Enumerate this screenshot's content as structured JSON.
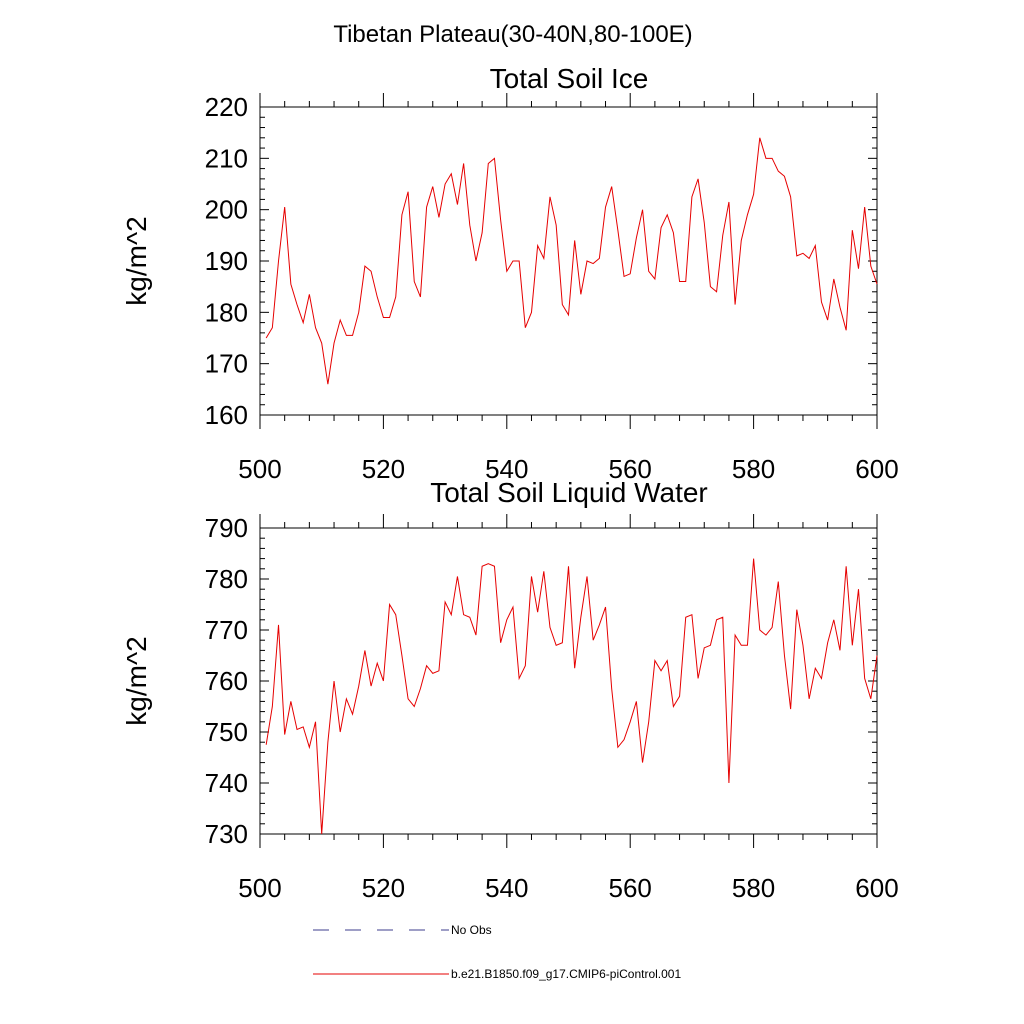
{
  "figure_title": "Tibetan Plateau(30-40N,80-100E)",
  "legend": {
    "entries": [
      {
        "label": "No Obs",
        "color": "#3c3c8c",
        "style": "dashed"
      },
      {
        "label": "b.e21.B1850.f09_g17.CMIP6-piControl.001",
        "color": "#e60000",
        "style": "solid"
      }
    ]
  },
  "chart_data": [
    {
      "type": "line",
      "title": "Total Soil Ice",
      "xlabel": "",
      "ylabel": "kg/m^2",
      "xlim": [
        500,
        600
      ],
      "ylim": [
        160,
        220
      ],
      "xticks": [
        500,
        520,
        540,
        560,
        580,
        600
      ],
      "yticks": [
        160,
        170,
        180,
        190,
        200,
        210,
        220
      ],
      "x_start": 501,
      "series": [
        {
          "color": "#e60000",
          "values": [
            175,
            177,
            190,
            200.5,
            185.5,
            181.5,
            178,
            183.5,
            177,
            174,
            166,
            174,
            178.5,
            175.5,
            175.5,
            180,
            189,
            188,
            183,
            179,
            179,
            183,
            199,
            203.5,
            186,
            183,
            200.5,
            204.5,
            198.5,
            205,
            207,
            201,
            209,
            197,
            190,
            195.5,
            209,
            210,
            198,
            188,
            190,
            190,
            177,
            180,
            193,
            190.5,
            202.5,
            197,
            181.5,
            179.5,
            194,
            183.5,
            190,
            189.5,
            190.5,
            200.5,
            204.5,
            196,
            187,
            187.5,
            194.5,
            200,
            188,
            186.5,
            196.5,
            199,
            195.5,
            186,
            186,
            202.5,
            206,
            197.5,
            185,
            184,
            195,
            201.5,
            181.5,
            194,
            199,
            203,
            214,
            210,
            210,
            207.5,
            206.5,
            202.5,
            191,
            191.5,
            190.5,
            193,
            182,
            178.5,
            186.5,
            181,
            176.5,
            196,
            188.5,
            200.5,
            189,
            185.5
          ]
        }
      ]
    },
    {
      "type": "line",
      "title": "Total Soil Liquid Water",
      "xlabel": "",
      "ylabel": "kg/m^2",
      "xlim": [
        500,
        600
      ],
      "ylim": [
        730,
        790
      ],
      "xticks": [
        500,
        520,
        540,
        560,
        580,
        600
      ],
      "yticks": [
        730,
        740,
        750,
        760,
        770,
        780,
        790
      ],
      "x_start": 501,
      "series": [
        {
          "color": "#e60000",
          "values": [
            747.5,
            755,
            771,
            749.5,
            756,
            750.5,
            751,
            747,
            752,
            730,
            748,
            760,
            750,
            756.5,
            753.5,
            759,
            766,
            759,
            763.5,
            760,
            775,
            773,
            765,
            756.5,
            755,
            758.5,
            763,
            761.5,
            762,
            775.5,
            773,
            780.5,
            773,
            772.5,
            769,
            782.5,
            783,
            782.5,
            767.5,
            772,
            774.5,
            760.5,
            763,
            780.5,
            773.5,
            781.5,
            770.5,
            767,
            767.5,
            782.5,
            762.5,
            772.5,
            780.5,
            768,
            771,
            774.5,
            758.5,
            747,
            748.5,
            752,
            756,
            744,
            752,
            764,
            762,
            764,
            755,
            757,
            772.5,
            773,
            760.5,
            766.5,
            767,
            772,
            772.5,
            740,
            769,
            767,
            767,
            784,
            770,
            769,
            770.5,
            779.5,
            765,
            754.5,
            774,
            767,
            756.5,
            762.5,
            760.5,
            767.5,
            772,
            766,
            782.5,
            767,
            778,
            760.5,
            756.5,
            765
          ]
        }
      ]
    }
  ]
}
